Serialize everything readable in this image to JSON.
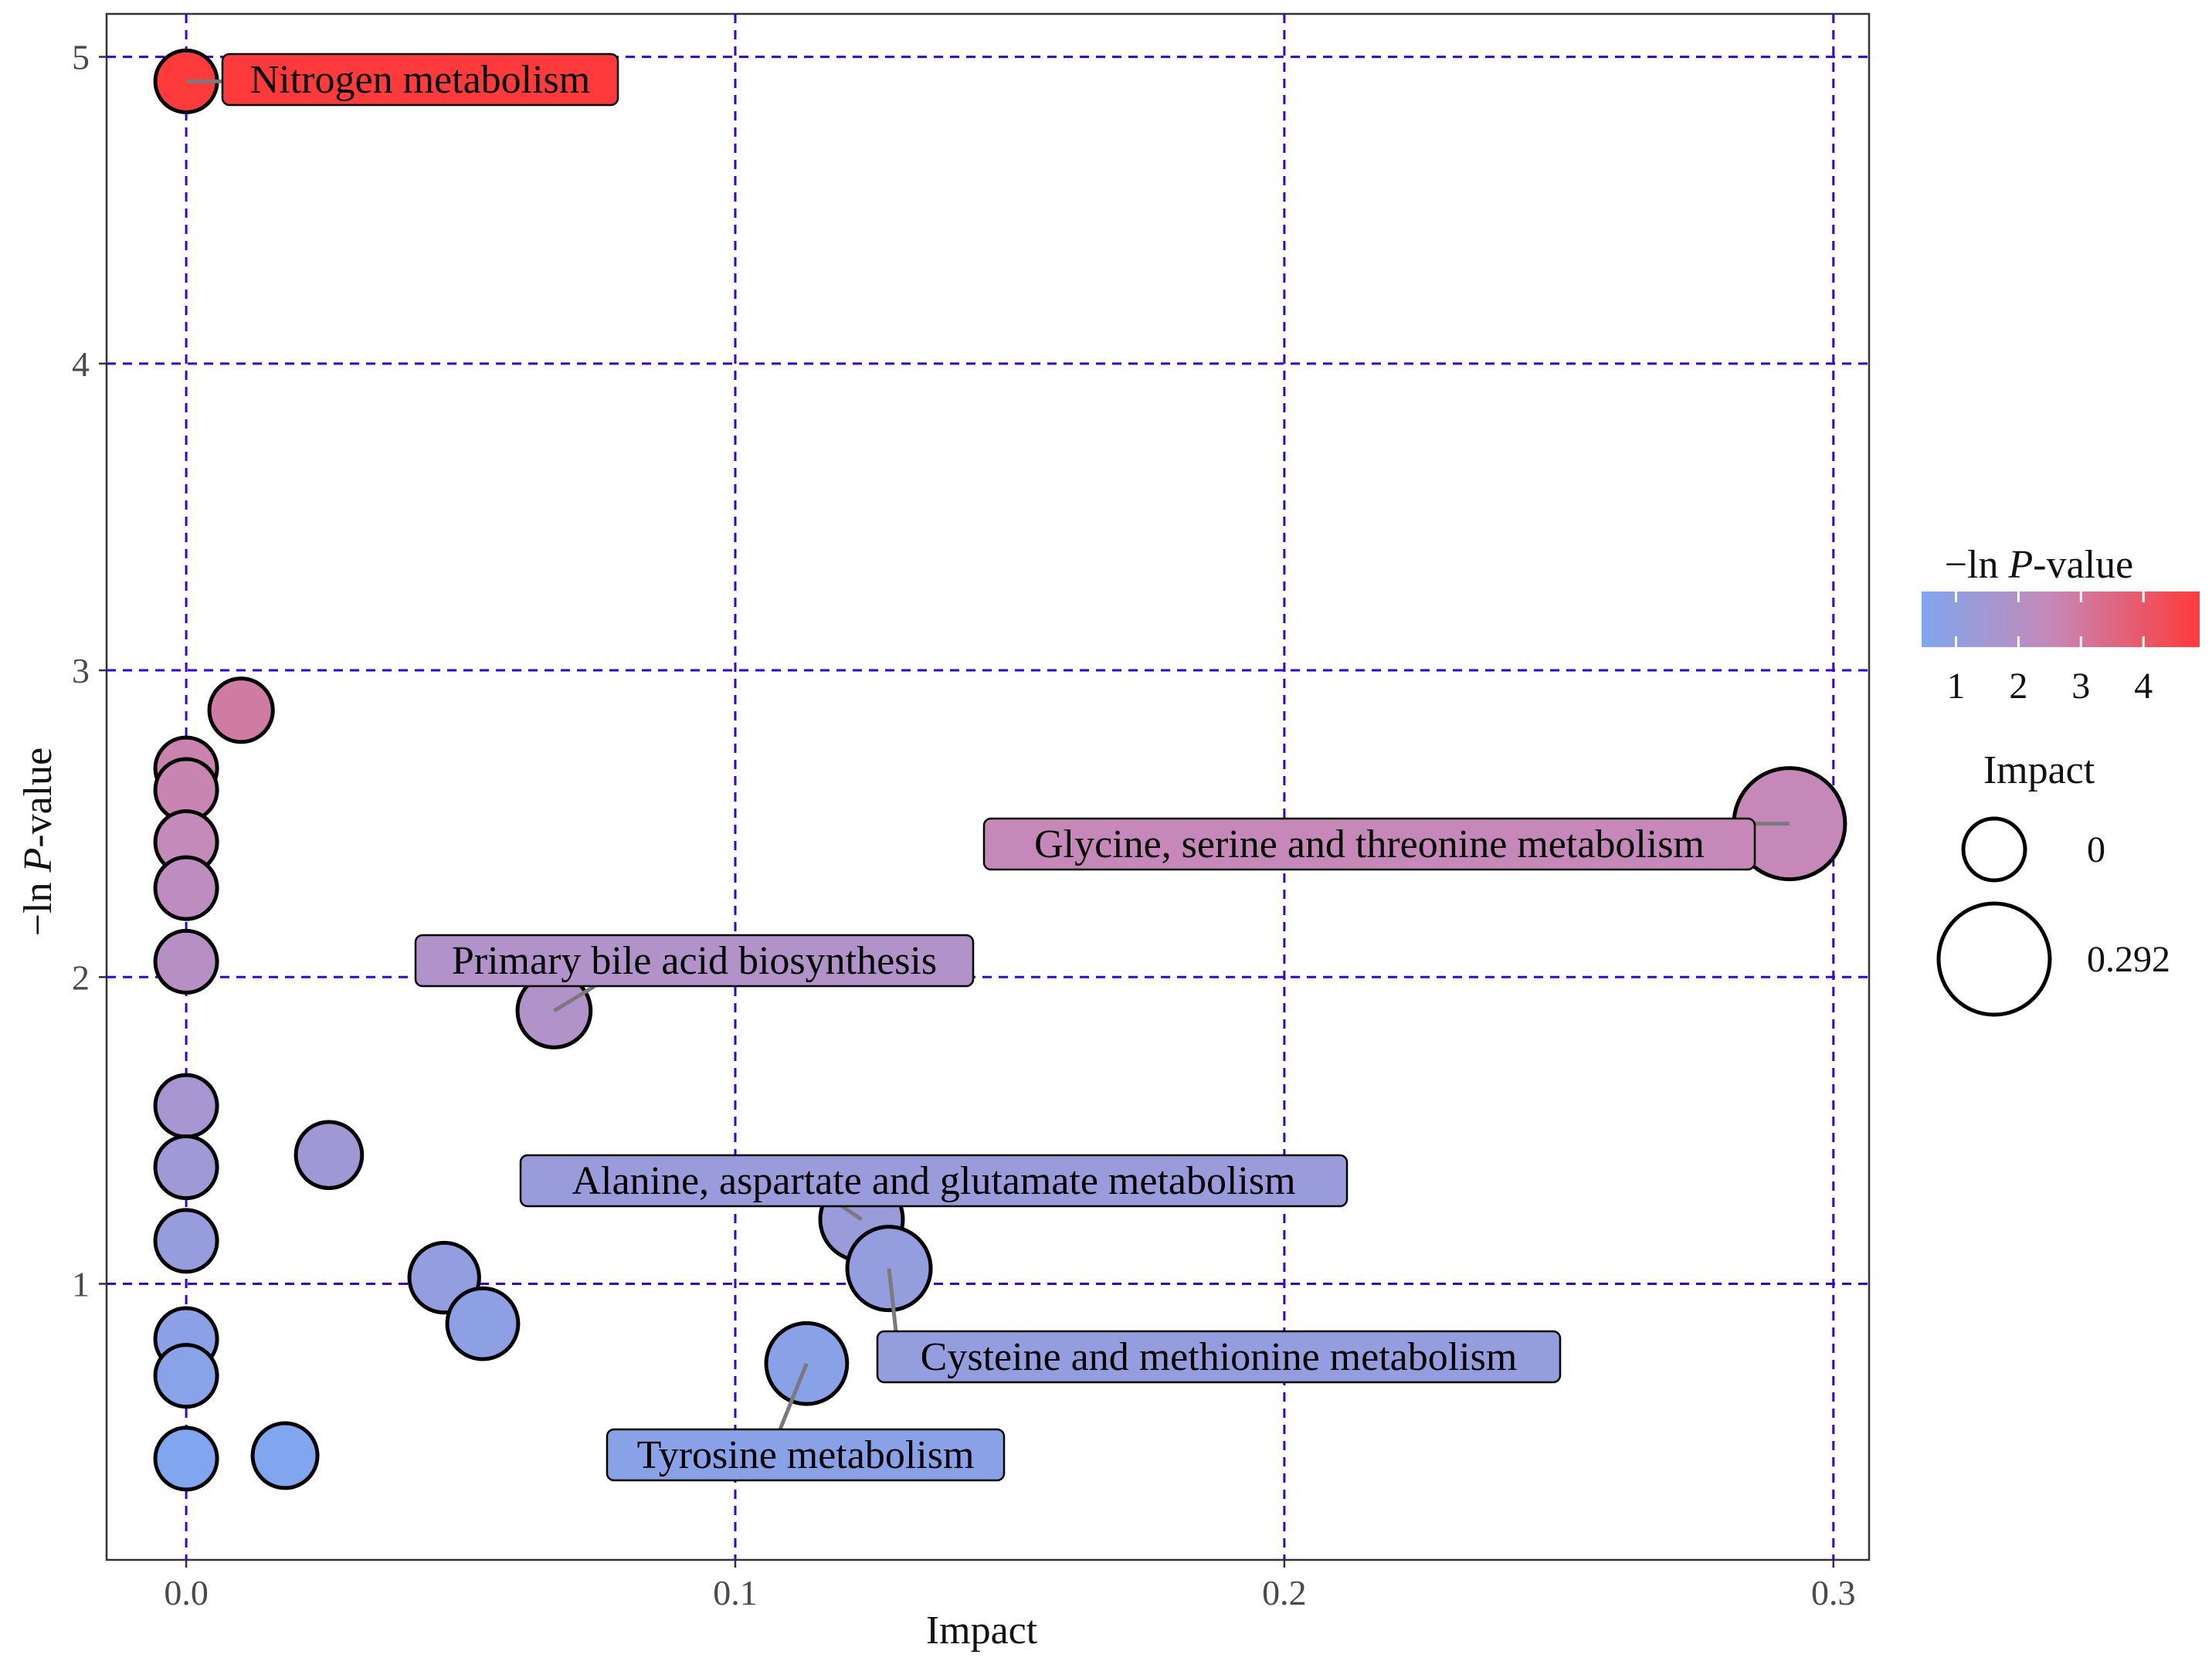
{
  "chart_data": {
    "type": "scatter",
    "title": "",
    "xlabel": "Impact",
    "ylabel": "−ln P-value",
    "ylabel_prefix": "−ln ",
    "ylabel_italic": "P",
    "ylabel_suffix": "-value",
    "xlim": [
      -0.0145,
      0.3065
    ],
    "ylim": [
      0.1,
      5.14
    ],
    "x_ticks": [
      0.0,
      0.1,
      0.2,
      0.3
    ],
    "x_tick_labels": [
      "0.0",
      "0.1",
      "0.2",
      "0.3"
    ],
    "y_ticks": [
      1,
      2,
      3,
      4,
      5
    ],
    "y_tick_labels": [
      "1",
      "2",
      "3",
      "4",
      "5"
    ],
    "grid": true,
    "grid_color": "#3300ee",
    "color_low": "#7fa6ef",
    "color_mid": "#c48aba",
    "color_high": "#ff3a3a",
    "color_range": [
      0.45,
      4.9
    ],
    "size_range": [
      0,
      0.292
    ],
    "points": [
      {
        "x": 0.0,
        "y": 4.92
      },
      {
        "x": 0.01,
        "y": 2.87
      },
      {
        "x": 0.0,
        "y": 2.68
      },
      {
        "x": 0.0,
        "y": 2.61
      },
      {
        "x": 0.0,
        "y": 2.44
      },
      {
        "x": 0.0,
        "y": 2.29
      },
      {
        "x": 0.0,
        "y": 2.05
      },
      {
        "x": 0.0,
        "y": 1.58
      },
      {
        "x": 0.0,
        "y": 1.38
      },
      {
        "x": 0.0,
        "y": 1.14
      },
      {
        "x": 0.0,
        "y": 0.82
      },
      {
        "x": 0.0,
        "y": 0.7
      },
      {
        "x": 0.0,
        "y": 0.43
      },
      {
        "x": 0.018,
        "y": 0.44
      },
      {
        "x": 0.026,
        "y": 1.42
      },
      {
        "x": 0.047,
        "y": 1.02
      },
      {
        "x": 0.054,
        "y": 0.87
      },
      {
        "x": 0.067,
        "y": 1.89
      },
      {
        "x": 0.113,
        "y": 0.74
      },
      {
        "x": 0.123,
        "y": 1.21
      },
      {
        "x": 0.128,
        "y": 1.05
      },
      {
        "x": 0.292,
        "y": 2.5
      }
    ],
    "annotations": [
      {
        "text": "Nitrogen metabolism",
        "point_x": 0.0,
        "point_y": 4.92
      },
      {
        "text": "Glycine, serine and threonine metabolism",
        "point_x": 0.292,
        "point_y": 2.5
      },
      {
        "text": "Primary bile acid biosynthesis",
        "point_x": 0.067,
        "point_y": 1.89
      },
      {
        "text": "Alanine, aspartate and glutamate metabolism",
        "point_x": 0.123,
        "point_y": 1.21
      },
      {
        "text": "Cysteine and methionine metabolism",
        "point_x": 0.128,
        "point_y": 1.05
      },
      {
        "text": "Tyrosine metabolism",
        "point_x": 0.113,
        "point_y": 0.74
      }
    ],
    "legend": {
      "placement": "right",
      "color_title_prefix": "−ln ",
      "color_title_italic": "P",
      "color_title_suffix": "-value",
      "color_ticks": [
        "1",
        "2",
        "3",
        "4"
      ],
      "size_title": "Impact",
      "size_entries": [
        "0",
        "0.292"
      ]
    }
  }
}
